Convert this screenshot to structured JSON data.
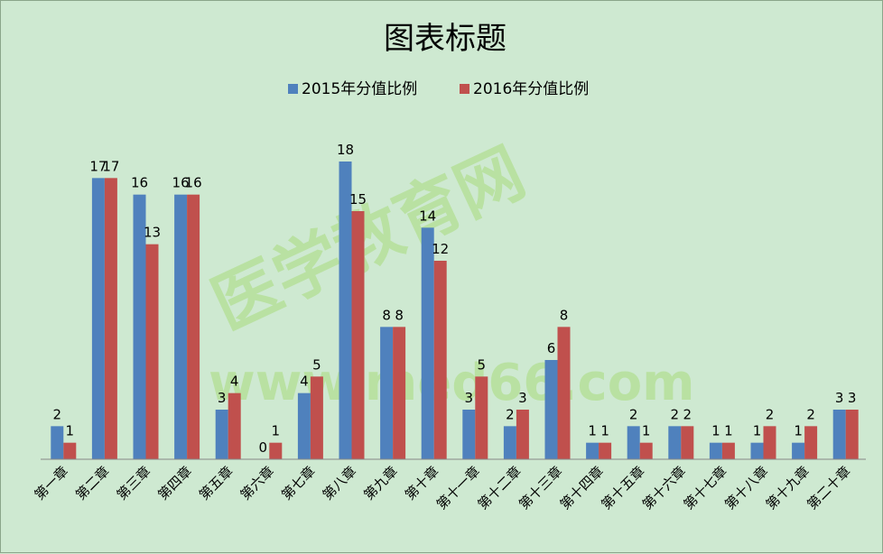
{
  "chart_data": {
    "type": "bar",
    "title": "图表标题",
    "categories": [
      "第一章",
      "第二章",
      "第三章",
      "第四章",
      "第五章",
      "第六章",
      "第七章",
      "第八章",
      "第九章",
      "第十章",
      "第十一章",
      "第十二章",
      "第十三章",
      "第十四章",
      "第十五章",
      "第十六章",
      "第十七章",
      "第十八章",
      "第十九章",
      "第二十章"
    ],
    "series": [
      {
        "name": "2015年分值比例",
        "color": "#4f81bd",
        "values": [
          2,
          17,
          16,
          16,
          3,
          0,
          4,
          18,
          8,
          14,
          3,
          2,
          6,
          1,
          2,
          2,
          1,
          1,
          1,
          3
        ]
      },
      {
        "name": "2016年分值比例",
        "color": "#c0504d",
        "values": [
          1,
          17,
          13,
          16,
          4,
          1,
          5,
          15,
          8,
          12,
          5,
          3,
          8,
          1,
          1,
          2,
          1,
          2,
          2,
          3
        ]
      }
    ],
    "ylim": [
      0,
      20
    ],
    "grid": false,
    "legend_position": "top",
    "data_labels": true
  },
  "watermark": {
    "line1": "医学教育网",
    "line2": "www.med66.com"
  }
}
